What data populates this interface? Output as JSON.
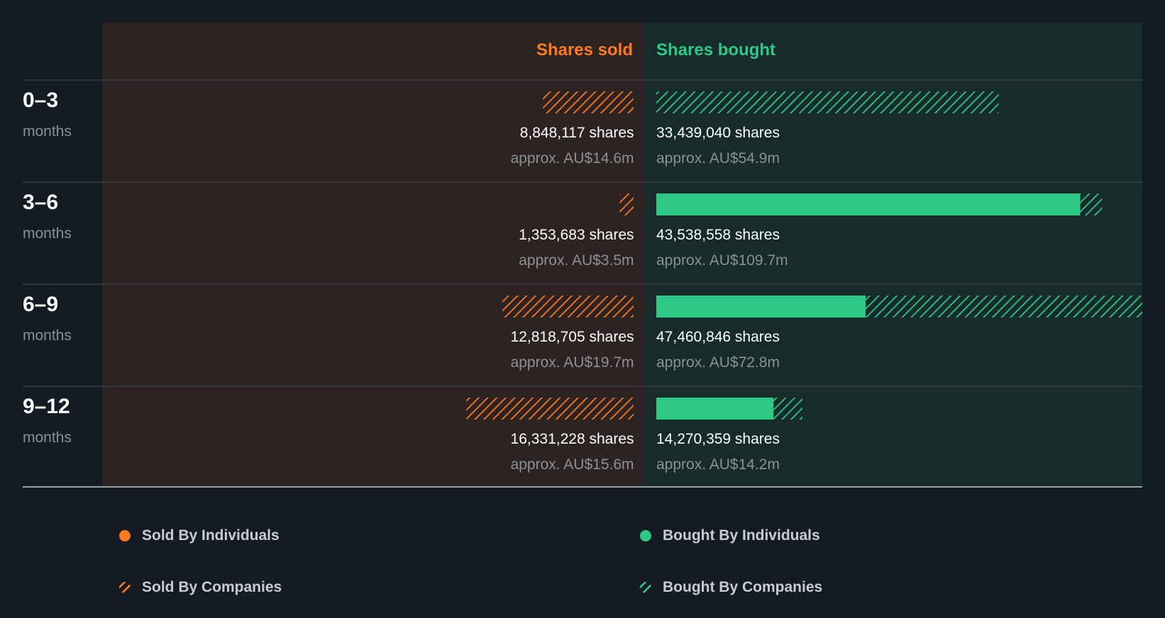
{
  "colors": {
    "background": "#151b24",
    "sold": "#ff7a1c",
    "bought": "#2ec987",
    "sold_panel": "#2d2322",
    "bought_panel": "#172b2b",
    "text_primary": "#ffffff",
    "text_muted": "#8c9096"
  },
  "chart_data": {
    "type": "bar",
    "orientation": "horizontal-diverging",
    "headers": {
      "sold": "Shares sold",
      "bought": "Shares bought"
    },
    "periods": [
      {
        "range": "0–3",
        "unit": "months",
        "sold": {
          "individuals": 0,
          "companies": 8848117,
          "label": "8,848,117 shares",
          "value": "approx. AU$14.6m"
        },
        "bought": {
          "individuals": 0,
          "companies": 33439040,
          "label": "33,439,040 shares",
          "value": "approx. AU$54.9m"
        }
      },
      {
        "range": "3–6",
        "unit": "months",
        "sold": {
          "individuals": 0,
          "companies": 1353683,
          "label": "1,353,683 shares",
          "value": "approx. AU$3.5m"
        },
        "bought": {
          "individuals": 41400000,
          "companies": 2138558,
          "label": "43,538,558 shares",
          "value": "approx. AU$109.7m"
        }
      },
      {
        "range": "6–9",
        "unit": "months",
        "sold": {
          "individuals": 0,
          "companies": 12818705,
          "label": "12,818,705 shares",
          "value": "approx. AU$19.7m"
        },
        "bought": {
          "individuals": 20450000,
          "companies": 27010846,
          "label": "47,460,846 shares",
          "value": "approx. AU$72.8m"
        }
      },
      {
        "range": "9–12",
        "unit": "months",
        "sold": {
          "individuals": 0,
          "companies": 16331228,
          "label": "16,331,228 shares",
          "value": "approx. AU$15.6m"
        },
        "bought": {
          "individuals": 11450000,
          "companies": 2820359,
          "label": "14,270,359 shares",
          "value": "approx. AU$14.2m"
        }
      }
    ],
    "legend": [
      {
        "key": "sold_individuals",
        "label": "Sold By Individuals",
        "style": "solid-dot",
        "color": "#ff7a1c"
      },
      {
        "key": "bought_individuals",
        "label": "Bought By Individuals",
        "style": "solid-dot",
        "color": "#2ec987"
      },
      {
        "key": "sold_companies",
        "label": "Sold By Companies",
        "style": "hatched",
        "color": "#ff7a1c"
      },
      {
        "key": "bought_companies",
        "label": "Bought By Companies",
        "style": "hatched",
        "color": "#2ec987"
      }
    ]
  }
}
